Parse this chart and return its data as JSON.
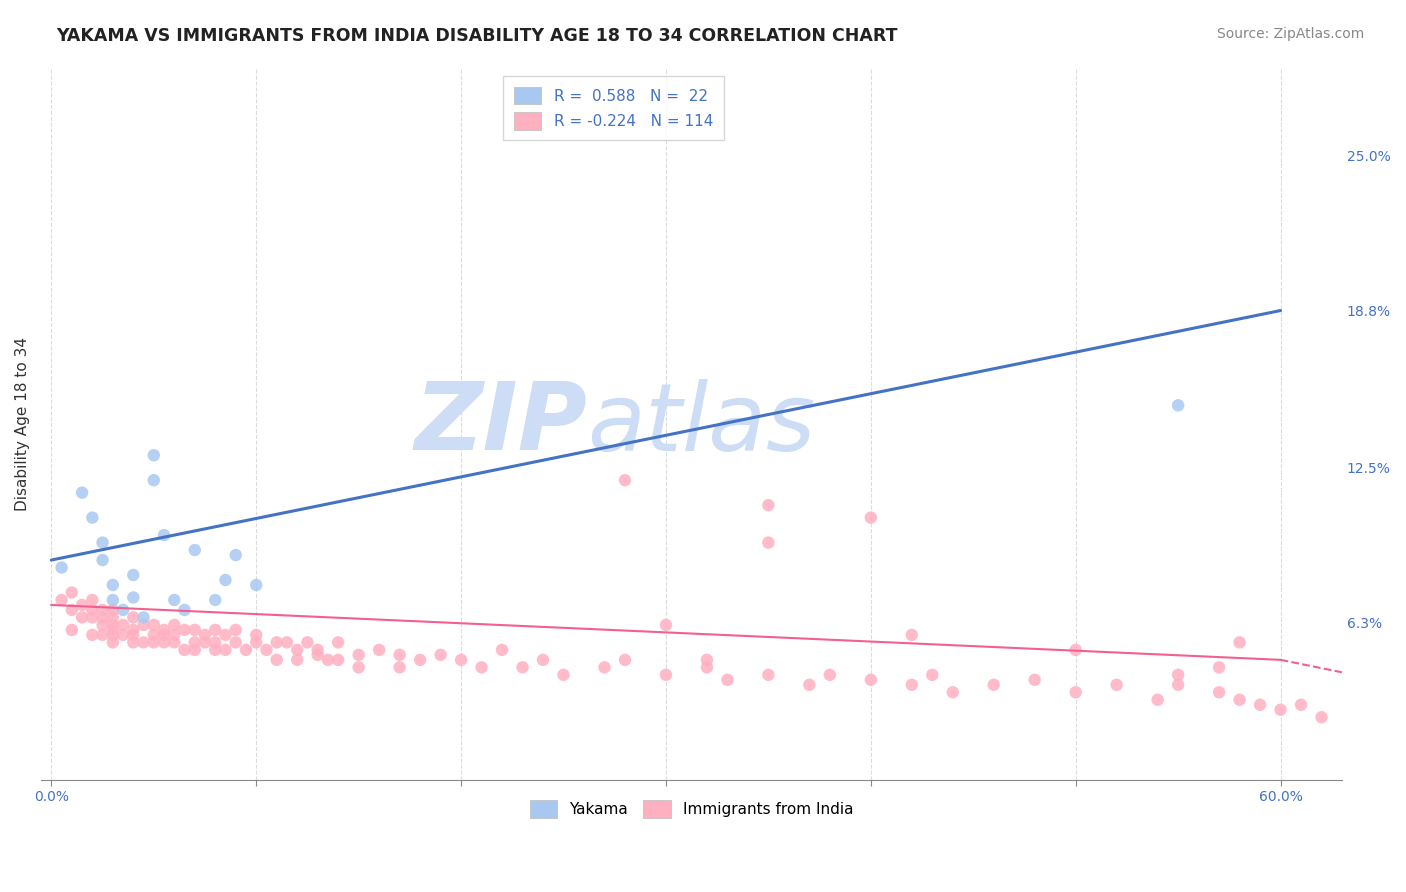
{
  "title": "YAKAMA VS IMMIGRANTS FROM INDIA DISABILITY AGE 18 TO 34 CORRELATION CHART",
  "source": "Source: ZipAtlas.com",
  "ylabel": "Disability Age 18 to 34",
  "x_tick_positions": [
    0.0,
    0.1,
    0.2,
    0.3,
    0.4,
    0.5,
    0.6
  ],
  "x_tick_labels_ends": [
    "0.0%",
    "60.0%"
  ],
  "y_ticks": [
    0.063,
    0.125,
    0.188,
    0.25
  ],
  "y_tick_labels": [
    "6.3%",
    "12.5%",
    "18.8%",
    "25.0%"
  ],
  "xlim": [
    -0.005,
    0.63
  ],
  "ylim": [
    0.0,
    0.285
  ],
  "r_yakama": 0.588,
  "n_yakama": 22,
  "r_india": -0.224,
  "n_india": 114,
  "color_yakama_scatter": "#a8c8f0",
  "color_yakama_line": "#4472c4",
  "color_india_scatter": "#ffb0c0",
  "color_india_line": "#f06090",
  "background_color": "#ffffff",
  "watermark_color": "#ccddf5",
  "grid_color": "#d8d8d8",
  "title_fontsize": 12.5,
  "axis_label_fontsize": 11,
  "tick_fontsize": 10,
  "source_fontsize": 10,
  "legend_fontsize": 11,
  "bottom_legend_labels": [
    "Yakama",
    "Immigrants from India"
  ],
  "yakama_x": [
    0.005,
    0.015,
    0.02,
    0.025,
    0.025,
    0.03,
    0.03,
    0.035,
    0.04,
    0.04,
    0.045,
    0.05,
    0.05,
    0.055,
    0.06,
    0.065,
    0.07,
    0.08,
    0.085,
    0.09,
    0.1,
    0.55
  ],
  "yakama_y": [
    0.085,
    0.115,
    0.105,
    0.095,
    0.088,
    0.072,
    0.078,
    0.068,
    0.073,
    0.082,
    0.065,
    0.12,
    0.13,
    0.098,
    0.072,
    0.068,
    0.092,
    0.072,
    0.08,
    0.09,
    0.078,
    0.15
  ],
  "india_x": [
    0.005,
    0.01,
    0.01,
    0.01,
    0.015,
    0.015,
    0.02,
    0.02,
    0.02,
    0.02,
    0.025,
    0.025,
    0.025,
    0.025,
    0.03,
    0.03,
    0.03,
    0.03,
    0.03,
    0.03,
    0.035,
    0.035,
    0.04,
    0.04,
    0.04,
    0.04,
    0.045,
    0.045,
    0.05,
    0.05,
    0.05,
    0.055,
    0.055,
    0.055,
    0.06,
    0.06,
    0.06,
    0.065,
    0.065,
    0.07,
    0.07,
    0.07,
    0.075,
    0.075,
    0.08,
    0.08,
    0.08,
    0.085,
    0.085,
    0.09,
    0.09,
    0.095,
    0.1,
    0.1,
    0.105,
    0.11,
    0.11,
    0.115,
    0.12,
    0.12,
    0.125,
    0.13,
    0.13,
    0.135,
    0.14,
    0.14,
    0.15,
    0.15,
    0.16,
    0.17,
    0.17,
    0.18,
    0.19,
    0.2,
    0.21,
    0.22,
    0.23,
    0.24,
    0.25,
    0.27,
    0.28,
    0.3,
    0.32,
    0.33,
    0.35,
    0.37,
    0.38,
    0.4,
    0.42,
    0.43,
    0.44,
    0.46,
    0.48,
    0.5,
    0.52,
    0.54,
    0.55,
    0.57,
    0.58,
    0.59,
    0.6,
    0.61,
    0.62,
    0.28,
    0.35,
    0.4,
    0.42,
    0.57,
    0.58,
    0.3,
    0.32,
    0.35,
    0.5,
    0.55
  ],
  "india_y": [
    0.072,
    0.068,
    0.075,
    0.06,
    0.065,
    0.07,
    0.068,
    0.058,
    0.065,
    0.072,
    0.068,
    0.058,
    0.062,
    0.065,
    0.068,
    0.055,
    0.062,
    0.058,
    0.065,
    0.06,
    0.062,
    0.058,
    0.06,
    0.055,
    0.065,
    0.058,
    0.055,
    0.062,
    0.058,
    0.062,
    0.055,
    0.06,
    0.055,
    0.058,
    0.055,
    0.062,
    0.058,
    0.052,
    0.06,
    0.055,
    0.06,
    0.052,
    0.058,
    0.055,
    0.055,
    0.06,
    0.052,
    0.058,
    0.052,
    0.055,
    0.06,
    0.052,
    0.055,
    0.058,
    0.052,
    0.055,
    0.048,
    0.055,
    0.052,
    0.048,
    0.055,
    0.05,
    0.052,
    0.048,
    0.055,
    0.048,
    0.05,
    0.045,
    0.052,
    0.05,
    0.045,
    0.048,
    0.05,
    0.048,
    0.045,
    0.052,
    0.045,
    0.048,
    0.042,
    0.045,
    0.048,
    0.042,
    0.045,
    0.04,
    0.042,
    0.038,
    0.042,
    0.04,
    0.038,
    0.042,
    0.035,
    0.038,
    0.04,
    0.035,
    0.038,
    0.032,
    0.038,
    0.035,
    0.032,
    0.03,
    0.028,
    0.03,
    0.025,
    0.12,
    0.11,
    0.105,
    0.058,
    0.045,
    0.055,
    0.062,
    0.048,
    0.095,
    0.052,
    0.042
  ],
  "yakama_line_x0": 0.0,
  "yakama_line_y0": 0.088,
  "yakama_line_x1": 0.6,
  "yakama_line_y1": 0.188,
  "india_line_x0": 0.0,
  "india_line_y0": 0.07,
  "india_line_x1": 0.6,
  "india_line_y1": 0.048
}
